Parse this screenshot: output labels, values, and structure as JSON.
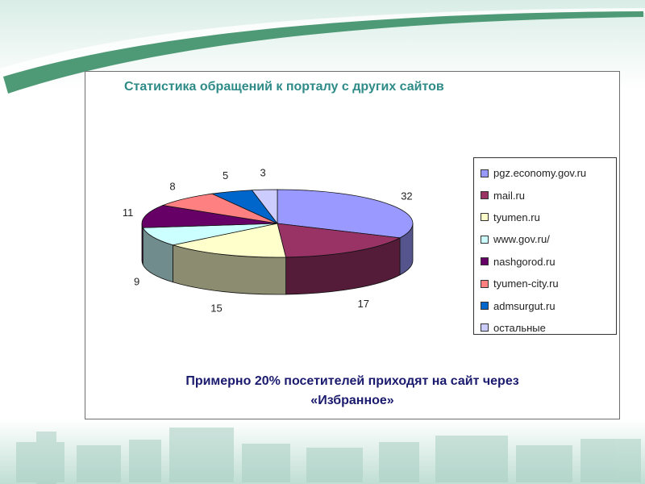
{
  "chart_data": {
    "type": "pie",
    "title": "Статистика обращений к порталу с других сайтов",
    "categories": [
      "pgz.economy.gov.ru",
      "mail.ru",
      "tyumen.ru",
      "www.gov.ru/",
      "nashgorod.ru",
      "tyumen-city.ru",
      "admsurgut.ru",
      "остальные"
    ],
    "values": [
      32,
      17,
      15,
      9,
      11,
      8,
      5,
      3
    ],
    "colors": [
      "#9a99ff",
      "#993366",
      "#ffffcc",
      "#ccffff",
      "#660066",
      "#ff8080",
      "#0066cc",
      "#ccccff"
    ],
    "legend_position": "right",
    "three_d": true
  },
  "note": {
    "line1": "Примерно 20% посетителей приходят на сайт через",
    "line2": "«Избранное»"
  }
}
